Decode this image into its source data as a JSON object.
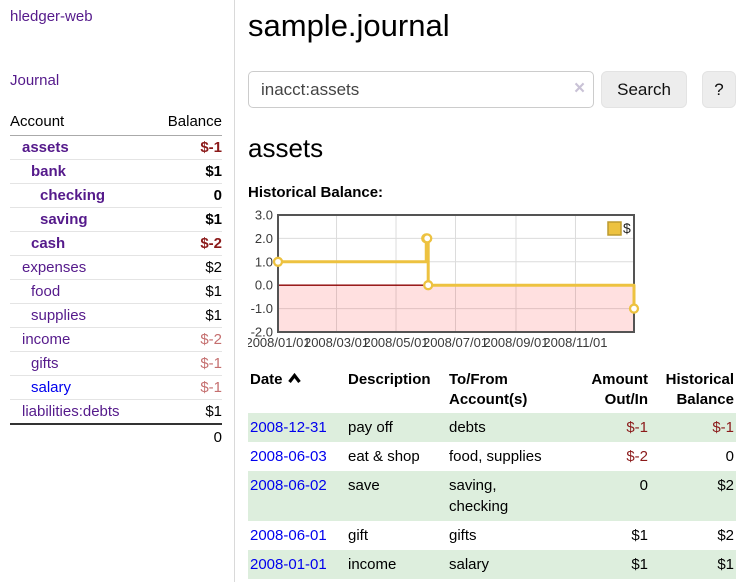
{
  "sidebar": {
    "brand": "hledger-web",
    "journal_link": "Journal",
    "accounts_table": {
      "header_account": "Account",
      "header_balance": "Balance",
      "rows": [
        {
          "name": "assets",
          "indent": 1,
          "balance": "$-1",
          "bold": true,
          "negative": "strong"
        },
        {
          "name": "bank",
          "indent": 2,
          "balance": "$1",
          "bold": true,
          "negative": "none"
        },
        {
          "name": "checking",
          "indent": 3,
          "balance": "0",
          "bold": true,
          "negative": "none"
        },
        {
          "name": "saving",
          "indent": 3,
          "balance": "$1",
          "bold": true,
          "negative": "none"
        },
        {
          "name": "cash",
          "indent": 2,
          "balance": "$-2",
          "bold": true,
          "negative": "strong"
        },
        {
          "name": "expenses",
          "indent": 1,
          "balance": "$2",
          "bold": false,
          "negative": "none"
        },
        {
          "name": "food",
          "indent": 2,
          "balance": "$1",
          "bold": false,
          "negative": "none"
        },
        {
          "name": "supplies",
          "indent": 2,
          "balance": "$1",
          "bold": false,
          "negative": "none"
        },
        {
          "name": "income",
          "indent": 1,
          "balance": "$-2",
          "bold": false,
          "negative": "soft"
        },
        {
          "name": "gifts",
          "indent": 2,
          "balance": "$-1",
          "bold": false,
          "negative": "soft"
        },
        {
          "name": "salary",
          "indent": 2,
          "balance": "$-1",
          "bold": false,
          "negative": "soft",
          "link_color": "blue"
        },
        {
          "name": "liabilities:debts",
          "indent": 1,
          "balance": "$1",
          "bold": false,
          "negative": "none"
        }
      ],
      "total": "0"
    }
  },
  "header": {
    "title": "sample.journal"
  },
  "search": {
    "value": "inacct:assets",
    "clear_icon": "×",
    "button_label": "Search",
    "help_label": "?"
  },
  "register": {
    "heading": "assets",
    "chart_label": "Historical Balance:"
  },
  "chart_data": {
    "type": "line",
    "title": "Historical Balance",
    "steps": true,
    "series": [
      {
        "name": "$",
        "color": "#edc240"
      }
    ],
    "x": [
      "2008-01-01",
      "2008-06-01",
      "2008-06-02",
      "2008-06-03",
      "2008-12-31"
    ],
    "values": [
      1,
      2,
      2,
      0,
      -1
    ],
    "x_range": [
      "2008-01-01",
      "2008-12-31"
    ],
    "x_ticks": [
      "2008/01/01",
      "2008/03/01",
      "2008/05/01",
      "2008/07/01",
      "2008/09/01",
      "2008/11/01"
    ],
    "y_ticks": [
      3.0,
      2.0,
      1.0,
      0.0,
      -1.0,
      -2.0
    ],
    "ylim": [
      -2,
      3
    ],
    "grid": true,
    "legend_position": "top-right",
    "negative_region_color": "rgba(255,0,0,0.12)",
    "zero_line_color": "#8b0000",
    "xlabel": "",
    "ylabel": ""
  },
  "table": {
    "headers": [
      "Date",
      "Description",
      "To/From Account(s)",
      "Amount Out/In",
      "Historical Balance"
    ],
    "sort": "Date ascending",
    "rows": [
      {
        "date": "2008-12-31",
        "description": "pay off",
        "accounts": "debts",
        "amount": "$-1",
        "amount_negative": true,
        "balance": "$-1",
        "balance_negative": true
      },
      {
        "date": "2008-06-03",
        "description": "eat & shop",
        "accounts": "food, supplies",
        "amount": "$-2",
        "amount_negative": true,
        "balance": "0",
        "balance_negative": false
      },
      {
        "date": "2008-06-02",
        "description": "save",
        "accounts": "saving, checking",
        "amount": "0",
        "amount_negative": false,
        "balance": "$2",
        "balance_negative": false
      },
      {
        "date": "2008-06-01",
        "description": "gift",
        "accounts": "gifts",
        "amount": "$1",
        "amount_negative": false,
        "balance": "$2",
        "balance_negative": false
      },
      {
        "date": "2008-01-01",
        "description": "income",
        "accounts": "salary",
        "amount": "$1",
        "amount_negative": false,
        "balance": "$1",
        "balance_negative": false
      }
    ]
  }
}
